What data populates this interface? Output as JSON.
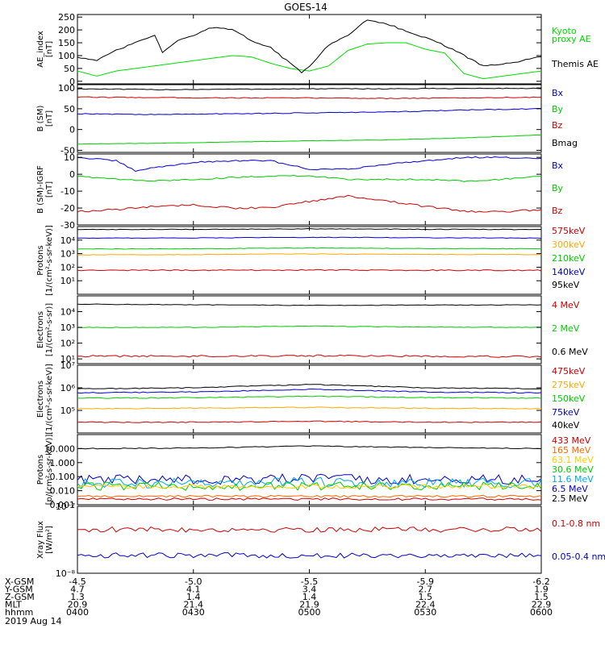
{
  "title": "GOES-14",
  "date_label": "2019 Aug 14",
  "x_axis": {
    "ticks": [
      "0400",
      "0430",
      "0500",
      "0530",
      "0600"
    ],
    "minutes": [
      0,
      30,
      60,
      90,
      120
    ]
  },
  "ephemeris": {
    "rows": [
      {
        "label": "X-GSM",
        "values": [
          "-4.5",
          "-5.0",
          "-5.5",
          "-5.9",
          "-6.2"
        ]
      },
      {
        "label": "Y-GSM",
        "values": [
          "4.7",
          "4.1",
          "3.4",
          "2.7",
          "1.9"
        ]
      },
      {
        "label": "Z-GSM",
        "values": [
          "1.3",
          "1.4",
          "1.4",
          "1.5",
          "1.5"
        ]
      },
      {
        "label": "MLT",
        "values": [
          "20.9",
          "21.4",
          "21.9",
          "22.4",
          "22.9"
        ]
      },
      {
        "label": "hhmm",
        "values": [
          "0400",
          "0430",
          "0500",
          "0530",
          "0600"
        ]
      }
    ]
  },
  "chart_data": [
    {
      "type": "line",
      "name": "ae",
      "ylabel": [
        "AE_index",
        "[nT]"
      ],
      "scale": "linear",
      "ylim": [
        -10,
        260
      ],
      "yticks": [
        0,
        50,
        100,
        150,
        200,
        250
      ],
      "ytick_labels": [
        "0",
        "50",
        "100",
        "150",
        "200",
        "250"
      ],
      "legend": [
        {
          "text": "Kyoto",
          "color": "#00dd00"
        },
        {
          "text": "proxy AE",
          "color": "#00dd00"
        },
        {
          "text": "Themis AE",
          "color": "#000000"
        }
      ],
      "series": [
        {
          "name": "Kyoto proxy AE",
          "color": "#00dd00",
          "noise": 0,
          "x": [
            0,
            5,
            10,
            15,
            20,
            25,
            30,
            35,
            40,
            45,
            50,
            55,
            60,
            65,
            70,
            75,
            80,
            85,
            90,
            95,
            100,
            105,
            110,
            115,
            120
          ],
          "y": [
            40,
            20,
            40,
            50,
            60,
            70,
            80,
            90,
            100,
            95,
            70,
            50,
            40,
            60,
            120,
            145,
            150,
            150,
            125,
            110,
            30,
            10,
            20,
            30,
            40
          ]
        },
        {
          "name": "Themis AE",
          "color": "#000000",
          "noise": 3,
          "x": [
            0,
            5,
            10,
            15,
            20,
            22,
            25,
            30,
            35,
            40,
            45,
            50,
            55,
            58,
            60,
            65,
            70,
            75,
            80,
            85,
            90,
            95,
            100,
            105,
            110,
            115,
            120
          ],
          "y": [
            95,
            80,
            120,
            150,
            180,
            110,
            150,
            180,
            210,
            200,
            160,
            130,
            70,
            35,
            60,
            140,
            180,
            240,
            225,
            195,
            170,
            140,
            100,
            60,
            65,
            80,
            95
          ]
        }
      ]
    },
    {
      "type": "line",
      "name": "b",
      "ylabel": [
        "B (SM)",
        "[nT]"
      ],
      "scale": "linear",
      "ylim": [
        -55,
        108
      ],
      "yticks": [
        -50,
        0,
        50,
        100
      ],
      "ytick_labels": [
        "-50",
        "0",
        "50",
        "100"
      ],
      "legend": [
        {
          "text": "Bx",
          "color": "#0000cc"
        },
        {
          "text": "By",
          "color": "#00cc00"
        },
        {
          "text": "Bz",
          "color": "#cc0000"
        },
        {
          "text": "Bmag",
          "color": "#000000"
        }
      ],
      "series": [
        {
          "name": "Bmag",
          "color": "#000000",
          "noise": 1,
          "x": [
            0,
            20,
            40,
            60,
            80,
            100,
            120
          ],
          "y": [
            98,
            96,
            97,
            98,
            98,
            99,
            99
          ]
        },
        {
          "name": "Bz",
          "color": "#cc0000",
          "noise": 1,
          "x": [
            0,
            20,
            40,
            60,
            80,
            100,
            120
          ],
          "y": [
            78,
            77,
            76,
            76,
            75,
            76,
            78
          ]
        },
        {
          "name": "Bx",
          "color": "#0000cc",
          "noise": 1,
          "x": [
            0,
            20,
            40,
            60,
            80,
            100,
            120
          ],
          "y": [
            38,
            36,
            38,
            40,
            42,
            47,
            50
          ]
        },
        {
          "name": "By",
          "color": "#00cc00",
          "noise": 0.5,
          "x": [
            0,
            20,
            40,
            60,
            80,
            100,
            120
          ],
          "y": [
            -35,
            -33,
            -30,
            -27,
            -25,
            -20,
            -13
          ]
        }
      ]
    },
    {
      "type": "line",
      "name": "dbigrf",
      "ylabel": [
        "B (SM)-IGRF",
        "[nT]"
      ],
      "scale": "linear",
      "ylim": [
        -30,
        12
      ],
      "yticks": [
        -30,
        -20,
        -10,
        0,
        10
      ],
      "ytick_labels": [
        "-30",
        "-20",
        "-10",
        "0",
        "10"
      ],
      "legend": [
        {
          "text": "Bx",
          "color": "#0000cc"
        },
        {
          "text": "By",
          "color": "#00cc00"
        },
        {
          "text": "Bz",
          "color": "#cc0000"
        }
      ],
      "series": [
        {
          "name": "Bx",
          "color": "#0000cc",
          "noise": 0.4,
          "x": [
            0,
            10,
            15,
            20,
            30,
            40,
            50,
            60,
            70,
            80,
            90,
            100,
            110,
            120
          ],
          "y": [
            10,
            8,
            2,
            4,
            7,
            8,
            8,
            3,
            3,
            6,
            8,
            10,
            10,
            9
          ]
        },
        {
          "name": "By",
          "color": "#00cc00",
          "noise": 0.4,
          "x": [
            0,
            10,
            20,
            30,
            40,
            50,
            60,
            70,
            80,
            90,
            100,
            110,
            120
          ],
          "y": [
            -1,
            -3,
            -4,
            -3,
            -2,
            -1,
            -1,
            -3,
            -3,
            -3,
            -4,
            -3,
            -1
          ]
        },
        {
          "name": "Bz",
          "color": "#cc0000",
          "noise": 0.6,
          "x": [
            0,
            10,
            20,
            30,
            40,
            50,
            60,
            70,
            80,
            90,
            100,
            110,
            120
          ],
          "y": [
            -22,
            -21,
            -19,
            -18,
            -20,
            -20,
            -16,
            -13,
            -16,
            -19,
            -22,
            -22,
            -21
          ]
        }
      ]
    },
    {
      "type": "line",
      "name": "protons_low",
      "ylabel": [
        "Protons",
        "[1/(cm²-s-sr-keV)]"
      ],
      "scale": "log",
      "ylim": [
        1,
        100000
      ],
      "yticks": [
        10,
        100,
        1000,
        10000
      ],
      "ytick_labels": [
        "10¹",
        "10²",
        "10³",
        "10⁴"
      ],
      "legend": [
        {
          "text": "575keV",
          "color": "#cc0000"
        },
        {
          "text": "300keV",
          "color": "#ffaa00"
        },
        {
          "text": "210keV",
          "color": "#00cc00"
        },
        {
          "text": "140keV",
          "color": "#0000cc"
        },
        {
          "text": "95keV",
          "color": "#000000"
        }
      ],
      "series": [
        {
          "name": "95keV",
          "color": "#000000",
          "noise": 0.02,
          "x": [
            0,
            30,
            60,
            90,
            120
          ],
          "y": [
            60000,
            62000,
            68000,
            63000,
            60000
          ]
        },
        {
          "name": "140keV",
          "color": "#0000cc",
          "noise": 0.02,
          "x": [
            0,
            30,
            60,
            90,
            120
          ],
          "y": [
            14000,
            14500,
            16000,
            15000,
            14000
          ]
        },
        {
          "name": "210keV",
          "color": "#00cc00",
          "noise": 0.02,
          "x": [
            0,
            30,
            60,
            90,
            120
          ],
          "y": [
            2200,
            2300,
            2600,
            2400,
            2300
          ]
        },
        {
          "name": "300keV",
          "color": "#ffaa00",
          "noise": 0.02,
          "x": [
            0,
            30,
            60,
            90,
            120
          ],
          "y": [
            800,
            850,
            950,
            880,
            850
          ]
        },
        {
          "name": "575keV",
          "color": "#cc0000",
          "noise": 0.04,
          "x": [
            0,
            30,
            60,
            90,
            120
          ],
          "y": [
            60,
            60,
            62,
            60,
            58
          ]
        }
      ]
    },
    {
      "type": "line",
      "name": "electrons_mev",
      "ylabel": [
        "Electrons",
        "[1/(cm²-s-sr)]"
      ],
      "scale": "log",
      "ylim": [
        5,
        100000
      ],
      "yticks": [
        10,
        100,
        1000,
        10000
      ],
      "ytick_labels": [
        "10¹",
        "10²",
        "10³",
        "10⁴"
      ],
      "legend": [
        {
          "text": "4 MeV",
          "color": "#cc0000"
        },
        {
          "text": "2 MeV",
          "color": "#00cc00"
        },
        {
          "text": "0.6 MeV",
          "color": "#000000"
        }
      ],
      "series": [
        {
          "name": "0.6 MeV",
          "color": "#000000",
          "noise": 0.02,
          "x": [
            0,
            30,
            60,
            90,
            120
          ],
          "y": [
            30000,
            27000,
            25000,
            26000,
            27000
          ]
        },
        {
          "name": "2 MeV",
          "color": "#00cc00",
          "noise": 0.02,
          "x": [
            0,
            30,
            60,
            90,
            120
          ],
          "y": [
            1000,
            1000,
            1200,
            1050,
            1000
          ]
        },
        {
          "name": "4 MeV",
          "color": "#cc0000",
          "noise": 0.06,
          "x": [
            0,
            30,
            60,
            90,
            120
          ],
          "y": [
            15,
            15,
            16,
            15,
            14
          ]
        }
      ]
    },
    {
      "type": "line",
      "name": "electrons_kev",
      "ylabel": [
        "Electrons",
        "[1/(cm²-s-sr-keV)]"
      ],
      "scale": "log",
      "ylim": [
        10000,
        10000000
      ],
      "yticks": [
        100000,
        1000000,
        10000000
      ],
      "ytick_labels": [
        "10⁵",
        "10⁶",
        "10⁷"
      ],
      "legend": [
        {
          "text": "475keV",
          "color": "#cc0000"
        },
        {
          "text": "275keV",
          "color": "#ffaa00"
        },
        {
          "text": "150keV",
          "color": "#00cc00"
        },
        {
          "text": "75keV",
          "color": "#0000cc"
        },
        {
          "text": "40keV",
          "color": "#000000"
        }
      ],
      "series": [
        {
          "name": "40keV",
          "color": "#000000",
          "noise": 0.02,
          "x": [
            0,
            30,
            60,
            90,
            120
          ],
          "y": [
            900000,
            1000000,
            1400000,
            1000000,
            900000
          ]
        },
        {
          "name": "75keV",
          "color": "#0000cc",
          "noise": 0.02,
          "x": [
            0,
            30,
            60,
            90,
            120
          ],
          "y": [
            600000,
            650000,
            850000,
            650000,
            600000
          ]
        },
        {
          "name": "150keV",
          "color": "#00cc00",
          "noise": 0.02,
          "x": [
            0,
            30,
            60,
            90,
            120
          ],
          "y": [
            350000,
            360000,
            420000,
            370000,
            350000
          ]
        },
        {
          "name": "275keV",
          "color": "#ffaa00",
          "noise": 0.02,
          "x": [
            0,
            30,
            60,
            90,
            120
          ],
          "y": [
            120000,
            125000,
            135000,
            125000,
            120000
          ]
        },
        {
          "name": "475keV",
          "color": "#cc0000",
          "noise": 0.02,
          "x": [
            0,
            30,
            60,
            90,
            120
          ],
          "y": [
            30000,
            30000,
            33000,
            30000,
            30000
          ]
        }
      ]
    },
    {
      "type": "line",
      "name": "protons_mev",
      "ylabel": [
        "Protons",
        "[p/(cm²-s-sr-keV)]"
      ],
      "scale": "log",
      "ylim": [
        0.001,
        100
      ],
      "yticks": [
        0.001,
        0.01,
        0.1,
        1,
        10
      ],
      "ytick_labels": [
        "0.001",
        "0.010",
        "0.100",
        "1.000",
        "10.000"
      ],
      "legend": [
        {
          "text": "433 MeV",
          "color": "#cc0000"
        },
        {
          "text": "165 MeV",
          "color": "#ff6600"
        },
        {
          "text": "63.1 MeV",
          "color": "#ffcc00"
        },
        {
          "text": "30.6 MeV",
          "color": "#00cc00"
        },
        {
          "text": "11.6 MeV",
          "color": "#00aaee"
        },
        {
          "text": "6.5 MeV",
          "color": "#0000cc"
        },
        {
          "text": "2.5 MeV",
          "color": "#000000"
        }
      ],
      "series": [
        {
          "name": "2.5 MeV",
          "color": "#000000",
          "noise": 0.03,
          "x": [
            0,
            30,
            60,
            90,
            120
          ],
          "y": [
            10,
            11,
            15,
            12,
            10
          ]
        },
        {
          "name": "6.5 MeV",
          "color": "#0000cc",
          "noise": 0.35,
          "x": [
            0,
            30,
            60,
            90,
            120
          ],
          "y": [
            0.06,
            0.06,
            0.07,
            0.06,
            0.06
          ]
        },
        {
          "name": "11.6 MeV",
          "color": "#00aaee",
          "noise": 0.35,
          "x": [
            0,
            30,
            60,
            90,
            120
          ],
          "y": [
            0.035,
            0.035,
            0.04,
            0.035,
            0.035
          ]
        },
        {
          "name": "30.6 MeV",
          "color": "#00cc00",
          "noise": 0.3,
          "x": [
            0,
            30,
            60,
            90,
            120
          ],
          "y": [
            0.02,
            0.02,
            0.022,
            0.02,
            0.02
          ]
        },
        {
          "name": "63.1 MeV",
          "color": "#ffcc00",
          "noise": 0.15,
          "x": [
            0,
            30,
            60,
            90,
            120
          ],
          "y": [
            0.02,
            0.02,
            0.02,
            0.02,
            0.02
          ]
        },
        {
          "name": "165 MeV",
          "color": "#ff6600",
          "noise": 0.08,
          "x": [
            0,
            30,
            60,
            90,
            120
          ],
          "y": [
            0.004,
            0.004,
            0.004,
            0.004,
            0.004
          ]
        },
        {
          "name": "433 MeV",
          "color": "#cc0000",
          "noise": 0.08,
          "x": [
            0,
            30,
            60,
            90,
            120
          ],
          "y": [
            0.0025,
            0.0025,
            0.0025,
            0.0025,
            0.0025
          ]
        }
      ]
    },
    {
      "type": "line",
      "name": "xray",
      "ylabel": [
        "Xray Flux",
        "[W/m²]"
      ],
      "scale": "log",
      "ylim": [
        1e-08,
        1e-07
      ],
      "yticks": [
        1e-08,
        1e-07
      ],
      "ytick_labels": [
        "10⁻⁸",
        "10⁻⁷"
      ],
      "legend": [
        {
          "text": "0.1-0.8 nm",
          "color": "#cc0000"
        },
        {
          "text": "0.05-0.4 nm",
          "color": "#0000cc"
        }
      ],
      "series": [
        {
          "name": "0.1-0.8 nm",
          "color": "#cc0000",
          "noise": 0.04,
          "x": [
            0,
            30,
            60,
            90,
            120
          ],
          "y": 4.5e-08
        },
        {
          "name": "0.05-0.4 nm",
          "color": "#0000cc",
          "noise": 0.04,
          "x": [
            0,
            30,
            60,
            90,
            120
          ],
          "y": 1.85e-08
        }
      ]
    }
  ]
}
